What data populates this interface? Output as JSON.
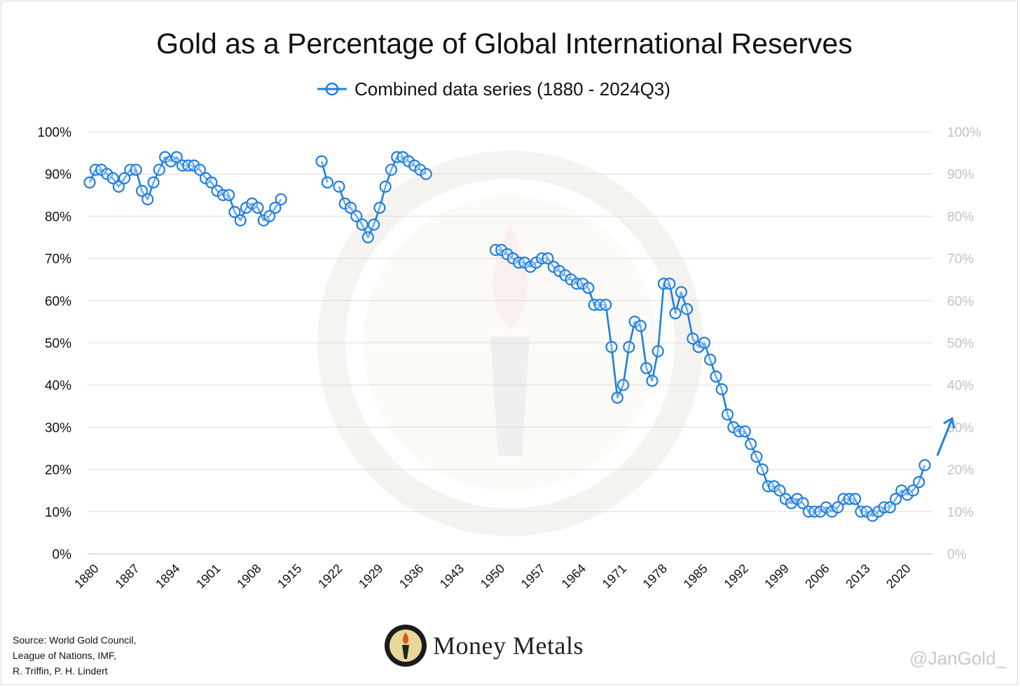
{
  "chart_data": {
    "type": "line",
    "title": "Gold as a Percentage of Global International Reserves",
    "series": [
      {
        "name": "Combined data series (1880 - 2024Q3)",
        "color": "#1f7fe0",
        "marker": "open-circle",
        "segments": [
          {
            "x": [
              1880,
              1881,
              1882,
              1883,
              1884,
              1885,
              1886,
              1887,
              1888,
              1889,
              1890,
              1891,
              1892,
              1893,
              1894,
              1895,
              1896,
              1897,
              1898,
              1899,
              1900,
              1901,
              1902,
              1903,
              1904,
              1905,
              1906,
              1907,
              1908,
              1909,
              1910,
              1911,
              1912,
              1913
            ],
            "y": [
              88,
              91,
              91,
              90,
              89,
              87,
              89,
              91,
              91,
              86,
              84,
              88,
              91,
              94,
              93,
              94,
              92,
              92,
              92,
              91,
              89,
              88,
              86,
              85,
              85,
              81,
              79,
              82,
              83,
              82,
              79,
              80,
              82,
              84
            ]
          },
          {
            "x": [
              1920,
              1921
            ],
            "y": [
              93,
              88
            ]
          },
          {
            "x": [
              1923,
              1924,
              1925,
              1926,
              1927,
              1928,
              1929,
              1930,
              1931,
              1932,
              1933,
              1934,
              1935,
              1936,
              1937,
              1938
            ],
            "y": [
              87,
              83,
              82,
              80,
              78,
              75,
              78,
              82,
              87,
              91,
              94,
              94,
              93,
              92,
              91,
              90
            ]
          },
          {
            "x": [
              1950,
              1951,
              1952,
              1953,
              1954,
              1955,
              1956,
              1957,
              1958,
              1959,
              1960,
              1961,
              1962,
              1963,
              1964,
              1965,
              1966,
              1967,
              1968,
              1969,
              1970,
              1971,
              1972,
              1973,
              1974,
              1975,
              1976,
              1977,
              1978,
              1979,
              1980,
              1981,
              1982,
              1983,
              1984,
              1985,
              1986,
              1987,
              1988,
              1989,
              1990,
              1991,
              1992,
              1993,
              1994,
              1995,
              1996,
              1997,
              1998,
              1999,
              2000,
              2001,
              2002,
              2003,
              2004,
              2005,
              2006,
              2007,
              2008,
              2009,
              2010,
              2011,
              2012,
              2013,
              2014,
              2015,
              2016,
              2017,
              2018,
              2019,
              2020,
              2021,
              2022,
              2023,
              2024
            ],
            "y": [
              72,
              72,
              71,
              70,
              69,
              69,
              68,
              69,
              70,
              70,
              68,
              67,
              66,
              65,
              64,
              64,
              63,
              59,
              59,
              59,
              49,
              37,
              40,
              49,
              55,
              54,
              44,
              41,
              48,
              64,
              64,
              57,
              62,
              58,
              51,
              49,
              50,
              46,
              42,
              39,
              33,
              30,
              29,
              29,
              26,
              23,
              20,
              16,
              16,
              15,
              13,
              12,
              13,
              12,
              10,
              10,
              10,
              11,
              10,
              11,
              13,
              13,
              13,
              10,
              10,
              9,
              10,
              11,
              11,
              13,
              15,
              14,
              15,
              17,
              21
            ]
          }
        ]
      }
    ],
    "x_ticks": [
      "1880",
      "1887",
      "1894",
      "1901",
      "1908",
      "1915",
      "1922",
      "1929",
      "1936",
      "1943",
      "1950",
      "1957",
      "1964",
      "1971",
      "1978",
      "1985",
      "1992",
      "1999",
      "2006",
      "2013",
      "2020"
    ],
    "y_ticks": [
      "0%",
      "10%",
      "20%",
      "30%",
      "40%",
      "50%",
      "60%",
      "70%",
      "80%",
      "90%",
      "100%"
    ],
    "xlim": [
      1880,
      2024
    ],
    "ylim": [
      0,
      100
    ],
    "grid": true,
    "legend_position": "top-center",
    "annotation": "arrow pointing up-right after the last point"
  },
  "footer": {
    "source_lines": [
      "Source: World Gold Council,",
      "League of Nations, IMF,",
      "R. Triffin, P. H. Lindert"
    ],
    "brand_name": "Money Metals",
    "handle": "@JanGold_"
  }
}
